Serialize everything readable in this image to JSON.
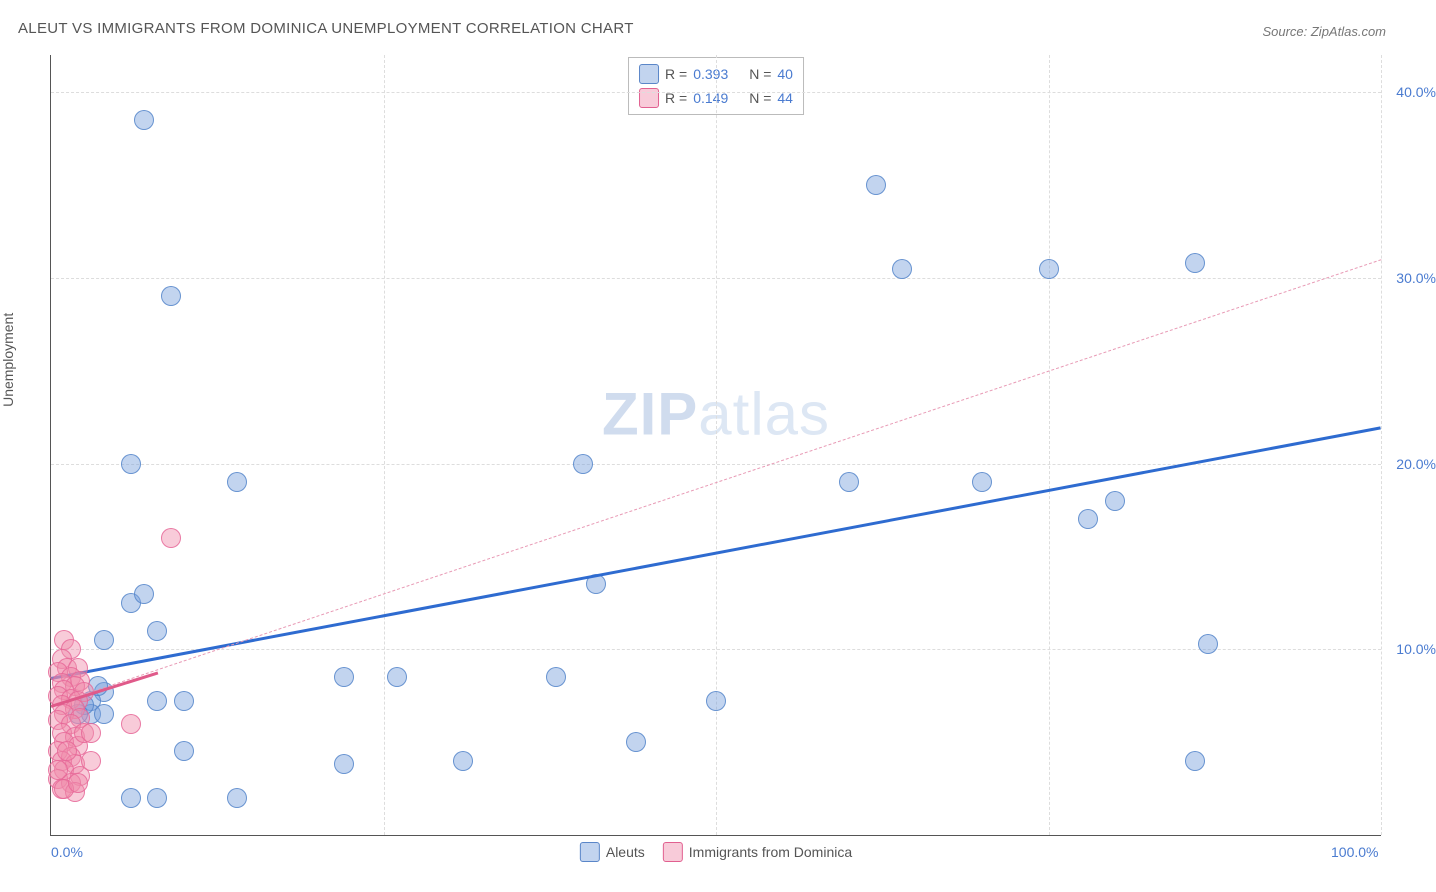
{
  "title": "ALEUT VS IMMIGRANTS FROM DOMINICA UNEMPLOYMENT CORRELATION CHART",
  "source": "Source: ZipAtlas.com",
  "y_axis_label": "Unemployment",
  "watermark_bold": "ZIP",
  "watermark_light": "atlas",
  "chart": {
    "type": "scatter",
    "xlim": [
      0,
      100
    ],
    "ylim": [
      0,
      42
    ],
    "y_ticks": [
      10,
      20,
      30,
      40
    ],
    "y_tick_labels": [
      "10.0%",
      "20.0%",
      "30.0%",
      "40.0%"
    ],
    "x_ticks": [
      0,
      50,
      100
    ],
    "x_tick_labels": [
      "0.0%",
      "",
      "100.0%"
    ],
    "x_grid_ticks": [
      25,
      50,
      75,
      100
    ],
    "background_color": "#ffffff",
    "grid_color": "#dddddd",
    "marker_radius": 9,
    "series": [
      {
        "name": "Aleuts",
        "color_fill": "rgba(120,160,220,0.45)",
        "color_stroke": "#5a86c8",
        "trend_color": "#2e6bd0",
        "trend_style": "solid",
        "trend_width": 3,
        "trend": {
          "x1": 0,
          "y1": 8.5,
          "x2": 100,
          "y2": 22
        },
        "R": "0.393",
        "N": "40",
        "points": [
          [
            7,
            38.5
          ],
          [
            62,
            35
          ],
          [
            9,
            29
          ],
          [
            64,
            30.5
          ],
          [
            75,
            30.5
          ],
          [
            86,
            30.8
          ],
          [
            6,
            20
          ],
          [
            14,
            19
          ],
          [
            40,
            20
          ],
          [
            60,
            19
          ],
          [
            70,
            19
          ],
          [
            80,
            18
          ],
          [
            78,
            17
          ],
          [
            87,
            10.3
          ],
          [
            6,
            12.5
          ],
          [
            7,
            13
          ],
          [
            8,
            11
          ],
          [
            4,
            10.5
          ],
          [
            41,
            13.5
          ],
          [
            22,
            8.5
          ],
          [
            26,
            8.5
          ],
          [
            38,
            8.5
          ],
          [
            50,
            7.2
          ],
          [
            8,
            7.2
          ],
          [
            10,
            7.2
          ],
          [
            4,
            7.7
          ],
          [
            3,
            7.2
          ],
          [
            3,
            6.5
          ],
          [
            4,
            6.5
          ],
          [
            31,
            4
          ],
          [
            22,
            3.8
          ],
          [
            10,
            4.5
          ],
          [
            44,
            5
          ],
          [
            86,
            4
          ],
          [
            6,
            2
          ],
          [
            8,
            2
          ],
          [
            14,
            2
          ],
          [
            2.5,
            7
          ],
          [
            3.5,
            8
          ],
          [
            2,
            6.5
          ]
        ]
      },
      {
        "name": "Immigrants from Dominica",
        "color_fill": "rgba(240,140,170,0.45)",
        "color_stroke": "#e16090",
        "trend_color": "#e89ab5",
        "trend_style": "dashed",
        "trend_width": 1.5,
        "trend": {
          "x1": 0,
          "y1": 7,
          "x2": 100,
          "y2": 31
        },
        "trend_solid_segment": {
          "x1": 0,
          "y1": 7,
          "x2": 8,
          "y2": 8.8
        },
        "R": "0.149",
        "N": "44",
        "points": [
          [
            9,
            16
          ],
          [
            1,
            10.5
          ],
          [
            1.5,
            10
          ],
          [
            0.8,
            9.5
          ],
          [
            1.2,
            9
          ],
          [
            2,
            9
          ],
          [
            0.5,
            8.8
          ],
          [
            1.5,
            8.5
          ],
          [
            2.2,
            8.3
          ],
          [
            0.8,
            8.2
          ],
          [
            1.8,
            8
          ],
          [
            1,
            7.8
          ],
          [
            2.5,
            7.7
          ],
          [
            0.5,
            7.5
          ],
          [
            1.5,
            7.3
          ],
          [
            2,
            7.2
          ],
          [
            0.8,
            7
          ],
          [
            1.8,
            6.8
          ],
          [
            1,
            6.5
          ],
          [
            2.2,
            6.3
          ],
          [
            0.5,
            6.2
          ],
          [
            1.5,
            6
          ],
          [
            6,
            6
          ],
          [
            0.8,
            5.5
          ],
          [
            1.8,
            5.3
          ],
          [
            1,
            5
          ],
          [
            2,
            4.8
          ],
          [
            0.5,
            4.5
          ],
          [
            1.5,
            4.2
          ],
          [
            0.8,
            4
          ],
          [
            1.8,
            3.8
          ],
          [
            1,
            3.5
          ],
          [
            2.2,
            3.2
          ],
          [
            0.5,
            3
          ],
          [
            1.5,
            2.8
          ],
          [
            0.8,
            2.5
          ],
          [
            1.8,
            2.3
          ],
          [
            1,
            2.5
          ],
          [
            2,
            2.8
          ],
          [
            0.5,
            3.5
          ],
          [
            1.2,
            4.5
          ],
          [
            2.5,
            5.5
          ],
          [
            3,
            5.5
          ],
          [
            3,
            4
          ]
        ]
      }
    ]
  },
  "legend_top": [
    {
      "swatch_fill": "rgba(120,160,220,0.45)",
      "swatch_stroke": "#5a86c8",
      "r_label": "R =",
      "r_val": "0.393",
      "n_label": "N =",
      "n_val": "40"
    },
    {
      "swatch_fill": "rgba(240,140,170,0.45)",
      "swatch_stroke": "#e16090",
      "r_label": "R =",
      "r_val": "0.149",
      "n_label": "N =",
      "n_val": "44"
    }
  ],
  "legend_bottom": [
    {
      "swatch_fill": "rgba(120,160,220,0.45)",
      "swatch_stroke": "#5a86c8",
      "label": "Aleuts"
    },
    {
      "swatch_fill": "rgba(240,140,170,0.45)",
      "swatch_stroke": "#e16090",
      "label": "Immigrants from Dominica"
    }
  ]
}
